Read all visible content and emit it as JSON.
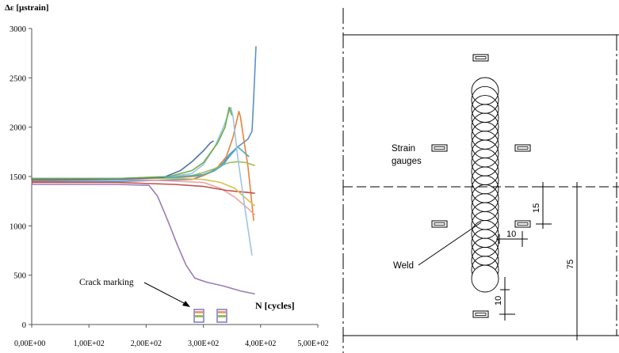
{
  "chart_data": {
    "type": "line",
    "ylabel": "Δε [µstrain]",
    "xlabel": "N [cycles]",
    "ylim": [
      0,
      3000
    ],
    "xlim": [
      0,
      500
    ],
    "yticks": [
      0,
      500,
      1000,
      1500,
      2000,
      2500,
      3000
    ],
    "xticks": [
      0,
      100,
      200,
      300,
      400,
      500
    ],
    "ytick_labels": [
      "0",
      "500",
      "1000",
      "1500",
      "2000",
      "2500",
      "3000"
    ],
    "xtick_labels": [
      "0,00E+00",
      "1,00E+02",
      "2,00E+02",
      "3,00E+02",
      "4,00E+02",
      "5,00E+02"
    ],
    "grid": false,
    "annotation": "Crack marking",
    "series": [
      {
        "color": "#5b8fc9",
        "x": [
          0,
          1,
          150,
          280,
          300,
          320,
          335,
          345,
          360,
          378,
          385,
          388,
          392
        ],
        "y": [
          1490,
          1450,
          1450,
          1470,
          1510,
          1570,
          1640,
          1720,
          1800,
          1880,
          1960,
          2300,
          2820
        ]
      },
      {
        "color": "#e8823a",
        "x": [
          0,
          1,
          150,
          260,
          300,
          320,
          340,
          352,
          358,
          362,
          365,
          370,
          378,
          388
        ],
        "y": [
          1490,
          1460,
          1470,
          1490,
          1510,
          1560,
          1700,
          1900,
          2060,
          2160,
          2100,
          1900,
          1600,
          1050
        ]
      },
      {
        "color": "#9b7bb8",
        "x": [
          0,
          1,
          150,
          205,
          220,
          238,
          255,
          270,
          285,
          305,
          335,
          365,
          390
        ],
        "y": [
          1490,
          1420,
          1420,
          1410,
          1300,
          1050,
          800,
          600,
          470,
          430,
          390,
          340,
          310
        ]
      },
      {
        "color": "#f3a2a2",
        "x": [
          0,
          1,
          150,
          220,
          300,
          330,
          355,
          375,
          390
        ],
        "y": [
          1480,
          1470,
          1470,
          1460,
          1440,
          1380,
          1290,
          1190,
          1110
        ]
      },
      {
        "color": "#c0504d",
        "x": [
          0,
          1,
          150,
          250,
          300,
          320,
          340,
          355,
          375,
          390
        ],
        "y": [
          1490,
          1440,
          1440,
          1420,
          1400,
          1380,
          1360,
          1350,
          1340,
          1330
        ]
      },
      {
        "color": "#9bbb59",
        "x": [
          0,
          1,
          150,
          220,
          280,
          300,
          320,
          330,
          345,
          360,
          375,
          390
        ],
        "y": [
          1500,
          1480,
          1480,
          1490,
          1510,
          1540,
          1580,
          1610,
          1640,
          1650,
          1640,
          1610
        ]
      },
      {
        "color": "#d8c24a",
        "x": [
          0,
          1,
          150,
          260,
          300,
          330,
          355,
          370,
          390
        ],
        "y": [
          1490,
          1480,
          1480,
          1480,
          1470,
          1440,
          1380,
          1300,
          1200
        ]
      },
      {
        "color": "#4bacc6",
        "x": [
          0,
          1,
          150,
          250,
          300,
          320,
          335,
          345,
          360,
          380
        ],
        "y": [
          1470,
          1480,
          1480,
          1490,
          1520,
          1560,
          1620,
          1700,
          1800,
          1700
        ]
      },
      {
        "color": "#9dc3e6",
        "x": [
          0,
          1,
          150,
          240,
          280,
          300,
          320,
          335,
          348,
          352,
          360,
          372,
          385
        ],
        "y": [
          1490,
          1480,
          1480,
          1500,
          1530,
          1620,
          1800,
          2000,
          2200,
          2100,
          1700,
          1200,
          700
        ]
      },
      {
        "color": "#4f6fa8",
        "x": [
          0,
          1,
          150,
          230,
          260,
          280,
          300,
          312,
          318
        ],
        "y": [
          1480,
          1470,
          1470,
          1490,
          1560,
          1650,
          1760,
          1840,
          1860
        ]
      },
      {
        "color": "#70ad47",
        "x": [
          0,
          1,
          150,
          240,
          280,
          300,
          325,
          338,
          345,
          350
        ],
        "y": [
          1490,
          1480,
          1480,
          1500,
          1560,
          1640,
          1840,
          2000,
          2200,
          2120
        ]
      }
    ]
  },
  "diagram": {
    "strain_gauges_label": "Strain\ngauges",
    "weld_label": "Weld",
    "dim_15": "15",
    "dim_10_horizontal": "10",
    "dim_10_vertical": "10",
    "dim_75": "75"
  }
}
